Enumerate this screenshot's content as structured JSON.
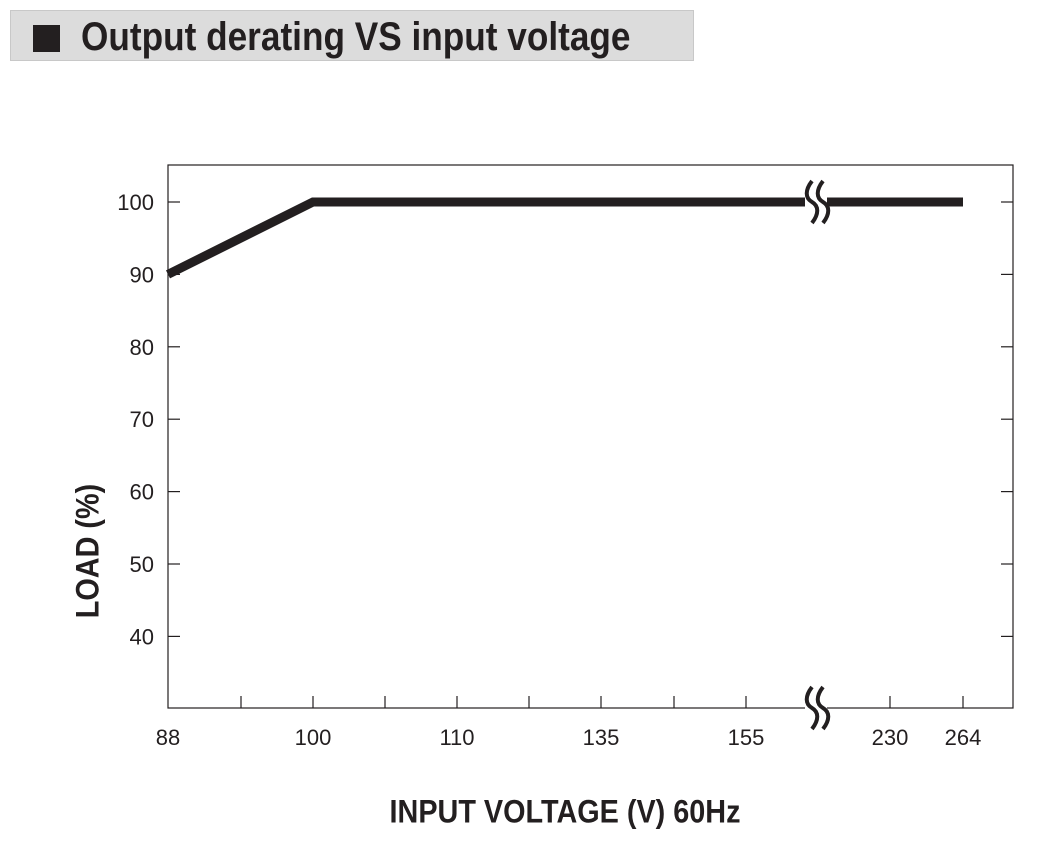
{
  "header": {
    "title": "Output derating VS input voltage"
  },
  "colors": {
    "line": "#231f20",
    "title_background": "#dcdcdc"
  },
  "chart_data": {
    "type": "line",
    "title": "Output derating VS input voltage",
    "xlabel": "INPUT VOLTAGE (V) 60Hz",
    "ylabel": "LOAD (%)",
    "x_axis_scale": "categorical, with axis break between 155 and 230",
    "x_tick_labels": [
      "88",
      "100",
      "110",
      "135",
      "155",
      "230",
      "264"
    ],
    "y_tick_labels": [
      "100",
      "90",
      "80",
      "70",
      "60",
      "50",
      "40"
    ],
    "ylim": [
      35,
      105
    ],
    "grid": false,
    "series": [
      {
        "x": [
          88,
          100,
          264
        ],
        "y": [
          90,
          100,
          100
        ]
      }
    ]
  }
}
